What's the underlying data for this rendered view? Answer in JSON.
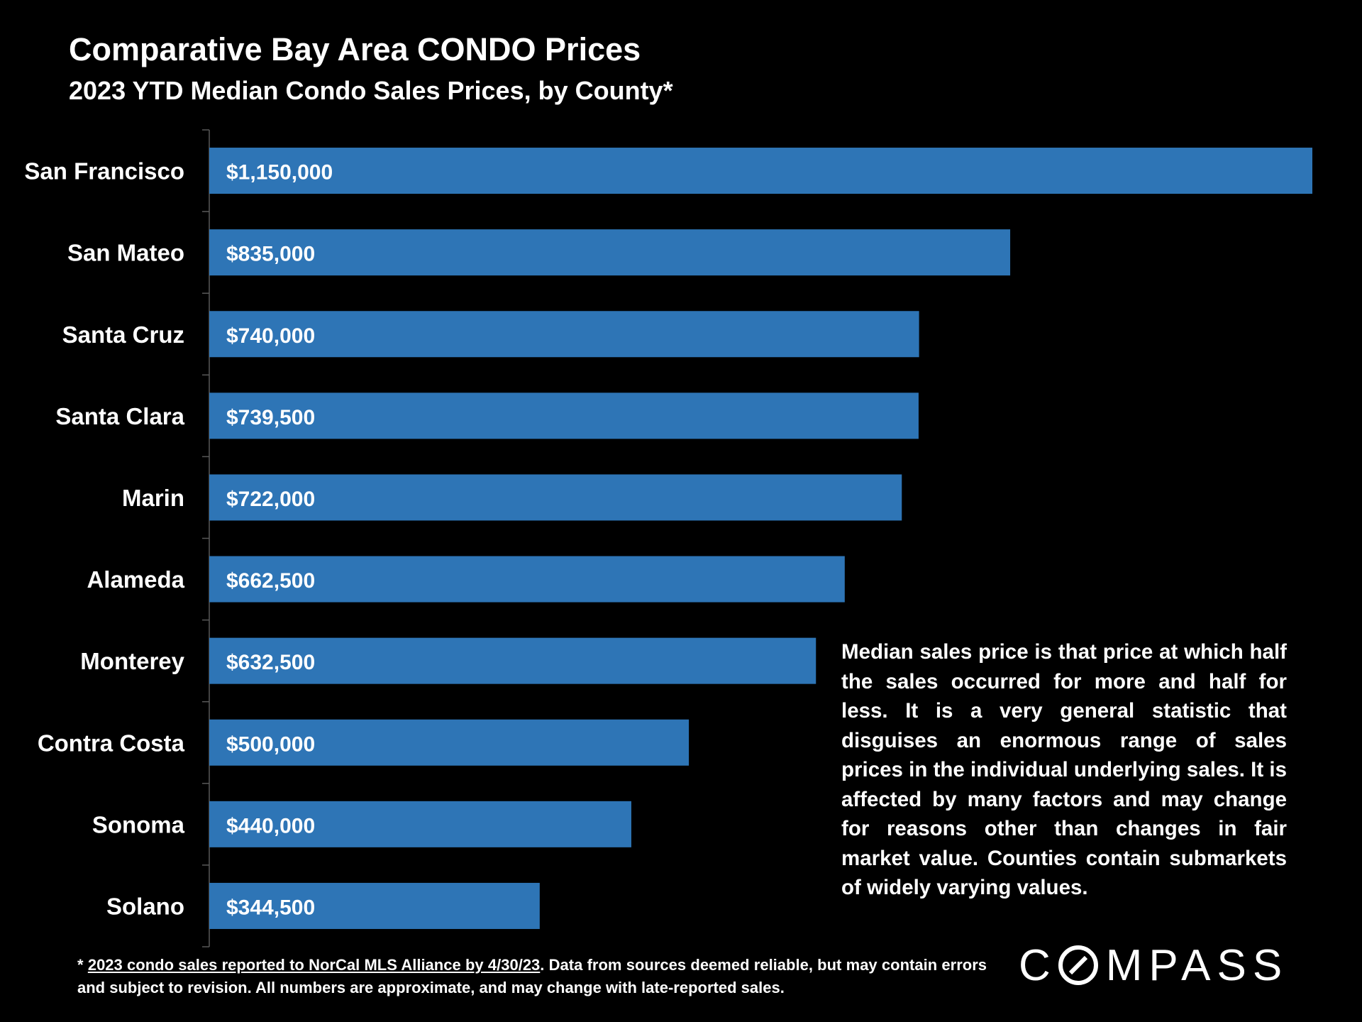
{
  "title": "Comparative Bay Area CONDO Prices",
  "subtitle": "2023 YTD Median Condo Sales Prices, by County*",
  "colors": {
    "background": "#000000",
    "bar": "#2e75b6",
    "text": "#ffffff",
    "axis": "#595959"
  },
  "chart_data": {
    "type": "bar",
    "orientation": "horizontal",
    "title": "Comparative Bay Area CONDO Prices",
    "subtitle": "2023 YTD Median Condo Sales Prices, by County*",
    "xlabel": "",
    "ylabel": "",
    "xlim": [
      0,
      1150000
    ],
    "grid": false,
    "categories": [
      "San Francisco",
      "San Mateo",
      "Santa Cruz",
      "Santa Clara",
      "Marin",
      "Alameda",
      "Monterey",
      "Contra Costa",
      "Sonoma",
      "Solano"
    ],
    "values": [
      1150000,
      835000,
      740000,
      739500,
      722000,
      662500,
      632500,
      500000,
      440000,
      344500
    ],
    "value_labels": [
      "$1,150,000",
      "$835,000",
      "$740,000",
      "$739,500",
      "$722,000",
      "$662,500",
      "$632,500",
      "$500,000",
      "$440,000",
      "$344,500"
    ]
  },
  "note": "Median sales price is that price at which half the sales occurred for more and half for less. It is a very general statistic that disguises an enormous range of sales prices in the individual underlying sales. It is affected by many factors and may change for reasons other than changes in fair market value. Counties contain submarkets of widely varying values.",
  "footnote": {
    "marker": "*",
    "source_link": "2023 condo sales reported to NorCal MLS Alliance by 4/30/23",
    "text": ". Data from sources deemed reliable, but may contain errors and subject to revision. All numbers are approximate, and may change with late-reported sales."
  },
  "logo": {
    "before": "C",
    "after": "MPASS",
    "icon": "compass-o-icon"
  }
}
